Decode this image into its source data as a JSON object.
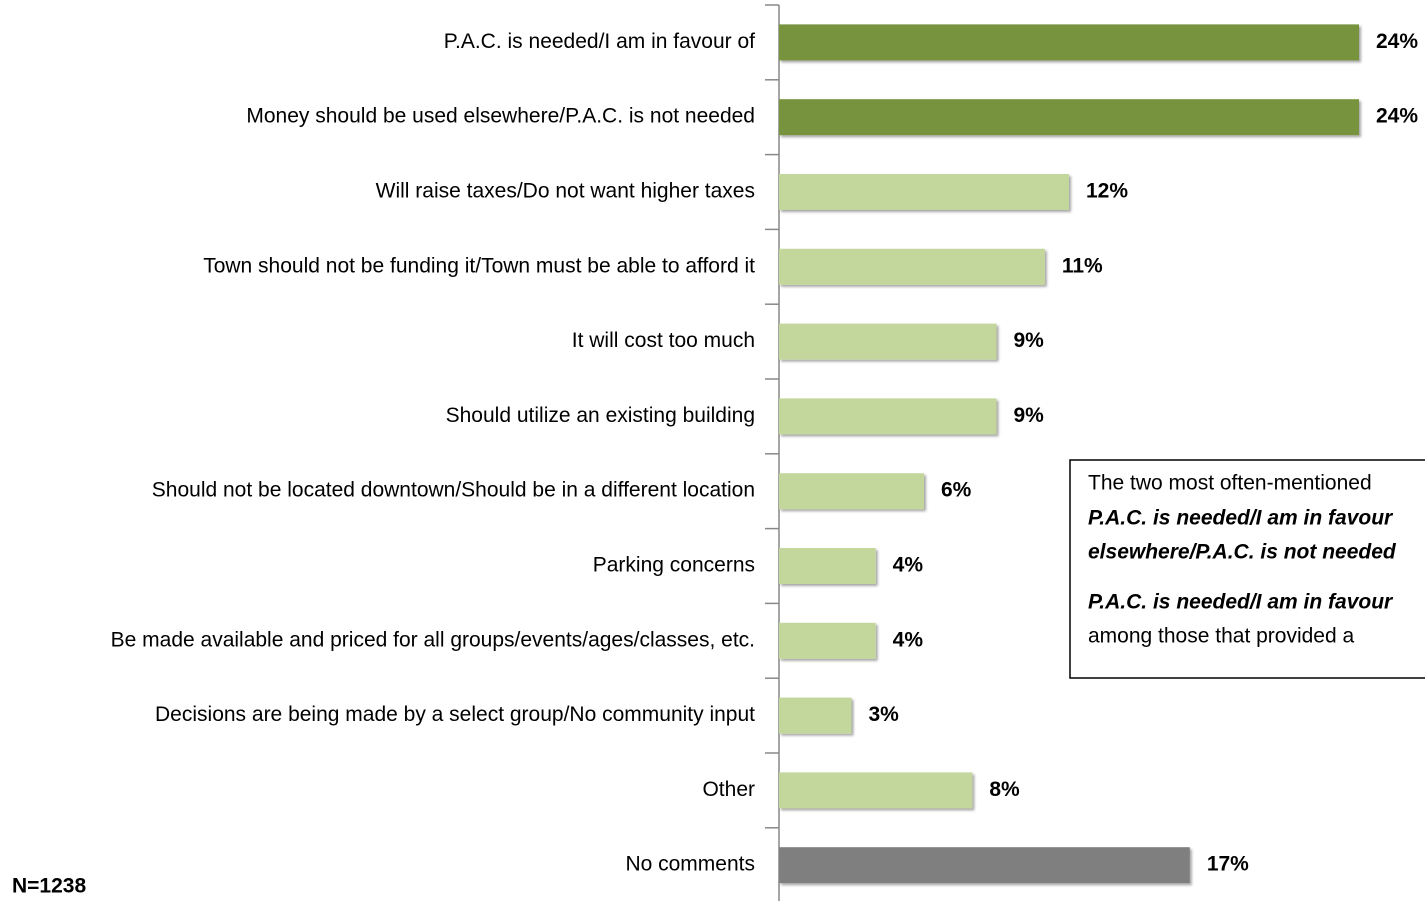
{
  "chart_data": {
    "type": "hbar",
    "categories": [
      "P.A.C. is needed/I am in favour of",
      "Money should be used elsewhere/P.A.C. is not needed",
      "Will raise taxes/Do not want higher taxes",
      "Town should not be funding it/Town must be able to afford it",
      "It will cost too much",
      "Should utilize an existing building",
      "Should not be located downtown/Should be in a different location",
      "Parking concerns",
      "Be made available and priced for all groups/events/ages/classes, etc.",
      "Decisions are being made by a select group/No community input",
      "Other",
      "No comments"
    ],
    "values": [
      24,
      24,
      12,
      11,
      9,
      9,
      6,
      4,
      4,
      3,
      8,
      17
    ],
    "value_labels": [
      "24%",
      "24%",
      "12%",
      "11%",
      "9%",
      "9%",
      "6%",
      "4%",
      "4%",
      "3%",
      "8%",
      "17%"
    ],
    "colors": [
      "#77933c",
      "#77933c",
      "#c3d69b",
      "#c3d69b",
      "#c3d69b",
      "#c3d69b",
      "#c3d69b",
      "#c3d69b",
      "#c3d69b",
      "#c3d69b",
      "#c3d69b",
      "#7f7f7f"
    ],
    "xlim": [
      0,
      24
    ],
    "annotations": [
      "N=1238"
    ],
    "note": {
      "lines": [
        "The two most often-mentioned",
        "P.A.C. is needed/I am in favour",
        "elsewhere/P.A.C. is not needed",
        "P.A.C. is needed/I am in favour",
        "among those that provided a"
      ],
      "italic": [
        false,
        true,
        true,
        true,
        false
      ]
    }
  }
}
